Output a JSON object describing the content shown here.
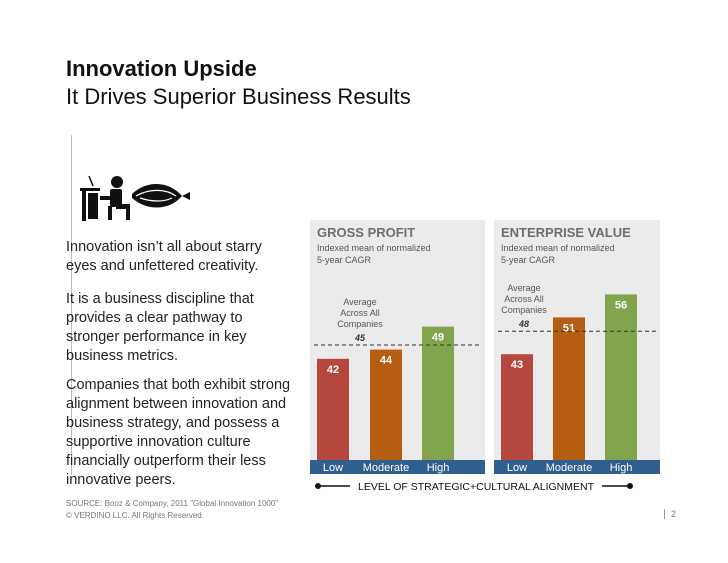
{
  "header": {
    "title": "Innovation Upside",
    "subtitle": "It Drives Superior Business Results"
  },
  "body": {
    "p1": "Innovation isn’t all about starry eyes and unfettered creativity.",
    "p2": "It is a business discipline that provides a clear pathway to stronger performance in key business metrics.",
    "p3": "Companies that both exhibit strong alignment between innovation and business strategy, and possess a supportive innovation culture financially outperform their less innovative peers."
  },
  "footer": {
    "source": "SOURCE: Booz & Company, 2011 \"Global Innovation 1000\"",
    "copyright": "© VERDINO LLC. All Rights Reserved.",
    "page": "2"
  },
  "colors": {
    "low": "#b5473f",
    "moderate": "#b55d10",
    "high": "#82a44c",
    "band": "#2f5f8d",
    "panel": "#ebebeb"
  },
  "chart_data": [
    {
      "type": "bar",
      "title": "GROSS PROFIT",
      "subtitle": "Indexed mean of normalized 5-year CAGR",
      "categories": [
        "Low",
        "Moderate",
        "High"
      ],
      "values": [
        42,
        44,
        49
      ],
      "reference_line": {
        "label": "Average Across All Companies",
        "value": 45
      },
      "xlabel": "LEVEL OF STRATEGIC+CULTURAL ALIGNMENT",
      "grid": false
    },
    {
      "type": "bar",
      "title": "ENTERPRISE VALUE",
      "subtitle": "Indexed mean of normalized 5-year CAGR",
      "categories": [
        "Low",
        "Moderate",
        "High"
      ],
      "values": [
        43,
        51,
        56
      ],
      "reference_line": {
        "label": "Average Across All Companies",
        "value": 48
      },
      "xlabel": "LEVEL OF STRATEGIC+CULTURAL ALIGNMENT",
      "grid": false
    }
  ]
}
